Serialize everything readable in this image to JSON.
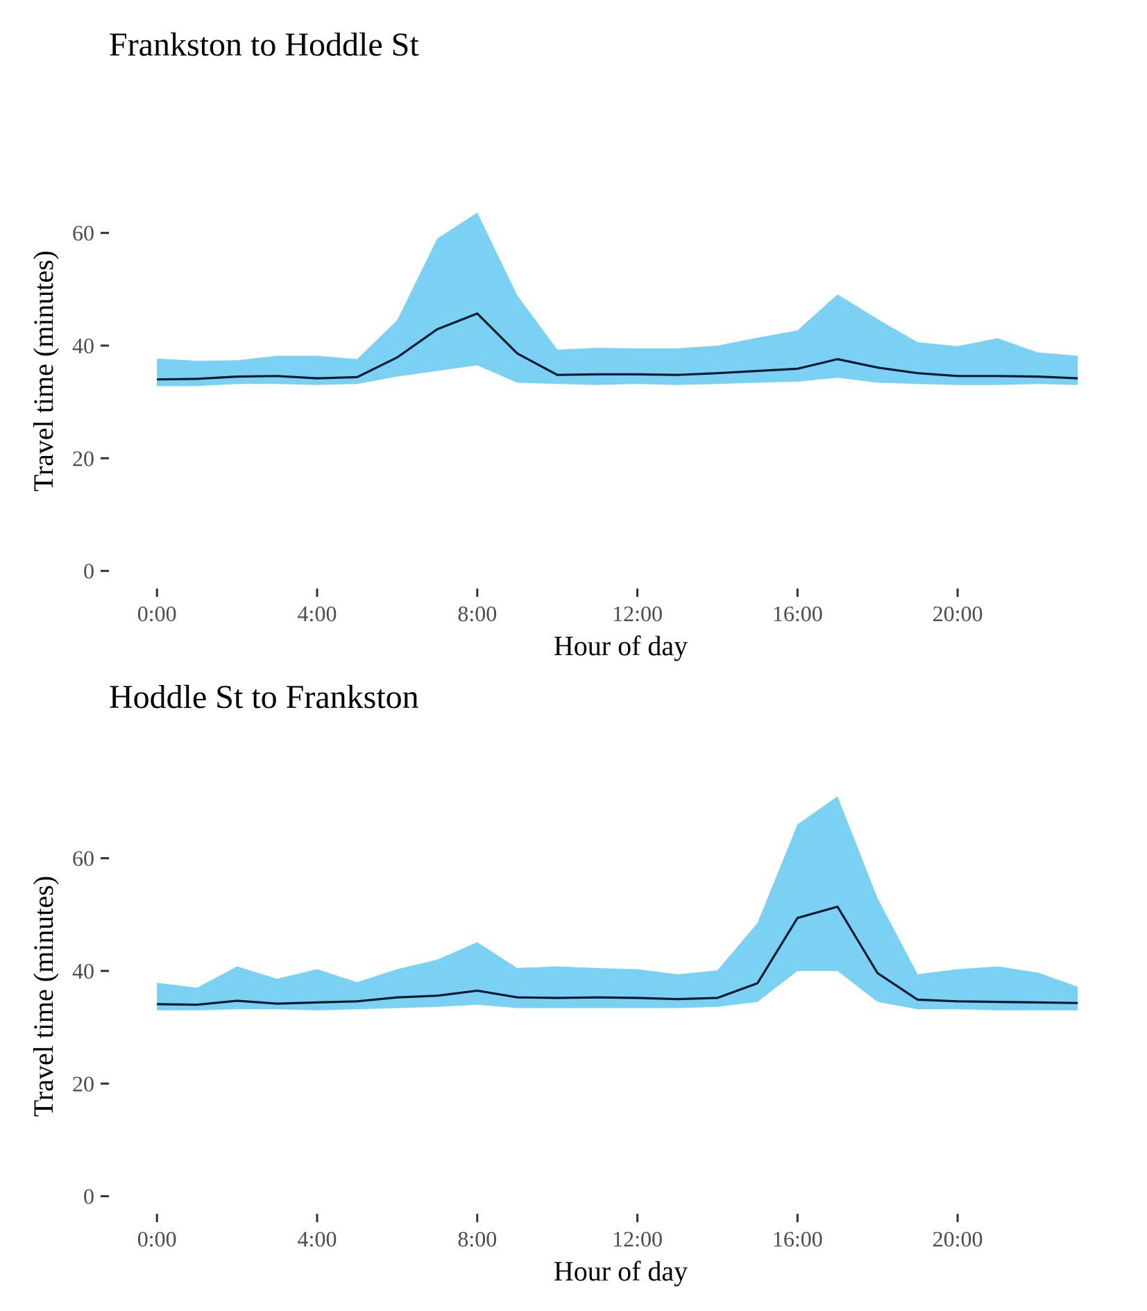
{
  "chart_data": [
    {
      "type": "area",
      "title": "Frankston to Hoddle St",
      "xlabel": "Hour of day",
      "ylabel": "Travel time (minutes)",
      "xlim": [
        -1.2,
        23.5
      ],
      "ylim": [
        -3,
        74
      ],
      "x_ticks": [
        0,
        4,
        8,
        12,
        16,
        20
      ],
      "x_tick_labels": [
        "0:00",
        "4:00",
        "8:00",
        "12:00",
        "16:00",
        "20:00"
      ],
      "y_ticks": [
        0,
        20,
        40,
        60
      ],
      "y_tick_labels": [
        "0",
        "20",
        "40",
        "60"
      ],
      "grid": false,
      "band_color": "#7ad1f3",
      "line_color": "#0b1a33",
      "hours": [
        0,
        1,
        2,
        3,
        4,
        5,
        6,
        7,
        8,
        9,
        10,
        11,
        12,
        13,
        14,
        15,
        16,
        17,
        18,
        19,
        20,
        21,
        22,
        23
      ],
      "lower": [
        32.8,
        32.8,
        33.2,
        33.2,
        33.0,
        33.2,
        34.5,
        35.5,
        36.5,
        33.4,
        33.2,
        33.0,
        33.2,
        33.0,
        33.2,
        33.4,
        33.6,
        34.3,
        33.4,
        33.2,
        33.0,
        33.0,
        33.2,
        33.0
      ],
      "median": [
        34.0,
        34.1,
        34.5,
        34.6,
        34.2,
        34.4,
        37.9,
        42.9,
        45.7,
        38.6,
        34.8,
        34.9,
        34.9,
        34.8,
        35.1,
        35.5,
        35.9,
        37.6,
        36.1,
        35.1,
        34.6,
        34.6,
        34.5,
        34.2
      ],
      "upper": [
        37.7,
        37.3,
        37.4,
        38.2,
        38.2,
        37.6,
        44.5,
        59.0,
        63.6,
        48.9,
        39.3,
        39.6,
        39.5,
        39.5,
        40.0,
        41.4,
        42.7,
        49.1,
        44.7,
        40.6,
        39.9,
        41.3,
        38.8,
        38.2
      ]
    },
    {
      "type": "area",
      "title": "Hoddle St to Frankston",
      "xlabel": "Hour of day",
      "ylabel": "Travel time (minutes)",
      "xlim": [
        -1.2,
        23.5
      ],
      "ylim": [
        -3,
        74
      ],
      "x_ticks": [
        0,
        4,
        8,
        12,
        16,
        20
      ],
      "x_tick_labels": [
        "0:00",
        "4:00",
        "8:00",
        "12:00",
        "16:00",
        "20:00"
      ],
      "y_ticks": [
        0,
        20,
        40,
        60
      ],
      "y_tick_labels": [
        "0",
        "20",
        "40",
        "60"
      ],
      "grid": false,
      "band_color": "#7ad1f3",
      "line_color": "#0b1a33",
      "hours": [
        0,
        1,
        2,
        3,
        4,
        5,
        6,
        7,
        8,
        9,
        10,
        11,
        12,
        13,
        14,
        15,
        16,
        17,
        18,
        19,
        20,
        21,
        22,
        23
      ],
      "lower": [
        33.0,
        33.0,
        33.2,
        33.2,
        33.0,
        33.2,
        33.4,
        33.6,
        34.0,
        33.4,
        33.4,
        33.4,
        33.4,
        33.4,
        33.6,
        34.5,
        40.0,
        40.0,
        34.5,
        33.2,
        33.2,
        33.0,
        33.0,
        33.0
      ],
      "median": [
        34.1,
        34.0,
        34.7,
        34.2,
        34.4,
        34.6,
        35.3,
        35.6,
        36.5,
        35.3,
        35.2,
        35.3,
        35.2,
        35.0,
        35.2,
        37.8,
        49.4,
        51.4,
        39.6,
        34.9,
        34.6,
        34.5,
        34.4,
        34.3
      ],
      "upper": [
        37.9,
        37.0,
        40.8,
        38.6,
        40.3,
        38.0,
        40.3,
        42.0,
        45.1,
        40.5,
        40.8,
        40.5,
        40.3,
        39.4,
        40.1,
        48.5,
        66.0,
        71.0,
        52.9,
        39.4,
        40.3,
        40.8,
        39.7,
        37.2
      ]
    }
  ]
}
